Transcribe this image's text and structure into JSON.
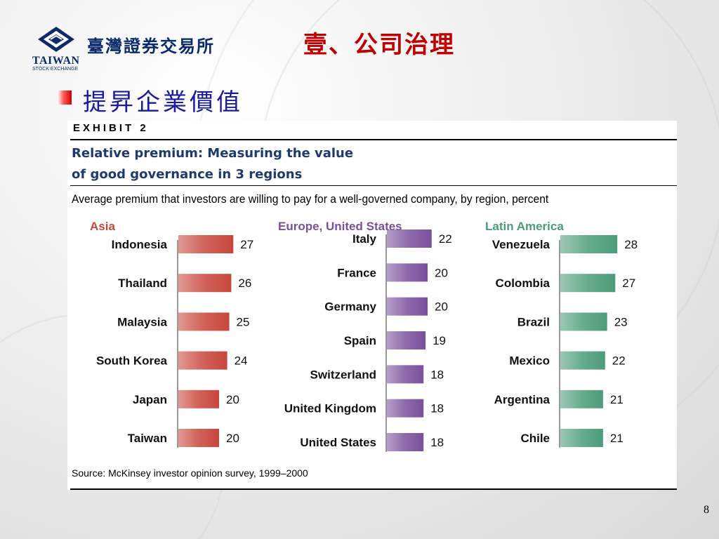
{
  "header": {
    "logo_text": "TAIWAN",
    "logo_subtext": "STOCK EXCHANGE",
    "exchange_name": "臺灣證券交易所",
    "title": "壹、公司治理"
  },
  "section": {
    "bullet_text": "提昇企業價值"
  },
  "page_number": "8",
  "exhibit": {
    "label": "EXHIBIT 2",
    "title_line1": "Relative premium: Measuring the value",
    "title_line2": "of good governance in 3 regions",
    "subtitle": "Average premium that investors are willing to pay for a well-governed company, by region, percent",
    "source": "Source: McKinsey investor opinion survey, 1999–2000"
  },
  "colors": {
    "title_red": "#c00000",
    "subtitle_blue": "#1a1aa0",
    "asia": "#c8463c",
    "europe_us": "#7a4f9c",
    "latin_america": "#4c9c7a"
  },
  "chart_data": {
    "type": "bar",
    "orientation": "horizontal",
    "title": "Relative premium: Measuring the value of good governance in 3 regions",
    "subtitle": "Average premium that investors are willing to pay for a well-governed company, by region, percent",
    "panels": [
      {
        "name": "Asia",
        "color": "#c8463c",
        "categories": [
          "Indonesia",
          "Thailand",
          "Malaysia",
          "South Korea",
          "Japan",
          "Taiwan"
        ],
        "values": [
          27,
          26,
          25,
          24,
          20,
          20
        ]
      },
      {
        "name": "Europe, United States",
        "color": "#7a4f9c",
        "categories": [
          "Italy",
          "France",
          "Germany",
          "Spain",
          "Switzerland",
          "United Kingdom",
          "United States"
        ],
        "values": [
          22,
          20,
          20,
          19,
          18,
          18,
          18
        ]
      },
      {
        "name": "Latin America",
        "color": "#4c9c7a",
        "categories": [
          "Venezuela",
          "Colombia",
          "Brazil",
          "Mexico",
          "Argentina",
          "Chile"
        ],
        "values": [
          28,
          27,
          23,
          22,
          21,
          21
        ]
      }
    ]
  }
}
